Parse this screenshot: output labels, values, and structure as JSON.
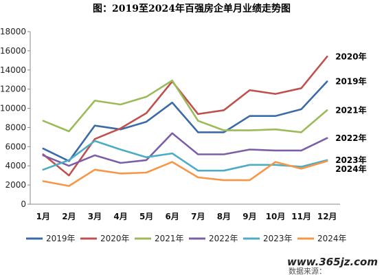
{
  "chart_data": {
    "type": "line",
    "title": "图：2019至2024年百强房企单月业绩走势图",
    "categories": [
      "1月",
      "2月",
      "3月",
      "4月",
      "5月",
      "6月",
      "7月",
      "8月",
      "9月",
      "10月",
      "11月",
      "12月"
    ],
    "ylim": [
      0,
      18000
    ],
    "yticks": [
      0,
      2000,
      4000,
      6000,
      8000,
      10000,
      12000,
      14000,
      16000,
      18000
    ],
    "grid": false,
    "legend_position": "bottom",
    "series": [
      {
        "name": "2019年",
        "color": "#3b6aa8",
        "label": "2019年",
        "values": [
          5800,
          4500,
          8200,
          7800,
          8600,
          10600,
          7500,
          7500,
          9200,
          9200,
          9900,
          12800
        ]
      },
      {
        "name": "2020年",
        "color": "#c0504d",
        "label": "2020年",
        "values": [
          5200,
          3000,
          6800,
          7900,
          9500,
          12800,
          9400,
          9800,
          11900,
          11500,
          12100,
          15400
        ]
      },
      {
        "name": "2021年",
        "color": "#9bbb59",
        "label": "2021年",
        "values": [
          8700,
          7600,
          10800,
          10400,
          11200,
          12900,
          8700,
          7700,
          7700,
          7800,
          7500,
          9800
        ]
      },
      {
        "name": "2022年",
        "color": "#7b5ea7",
        "label": "2022年",
        "values": [
          5100,
          4000,
          5100,
          4300,
          4600,
          7400,
          5200,
          5200,
          5700,
          5600,
          5600,
          6900
        ]
      },
      {
        "name": "2023年",
        "color": "#4bacc6",
        "label": "2023年",
        "values": [
          3600,
          4600,
          6600,
          5700,
          4900,
          5300,
          3500,
          3500,
          4100,
          4100,
          3900,
          4600
        ]
      },
      {
        "name": "2024年",
        "color": "#f79646",
        "label": "2024年",
        "values": [
          2400,
          1900,
          3600,
          3200,
          3300,
          4400,
          2800,
          2500,
          2500,
          4400,
          3700,
          4500
        ]
      }
    ]
  },
  "watermark": {
    "url": "www.365jz.com",
    "source": "数据来源："
  }
}
